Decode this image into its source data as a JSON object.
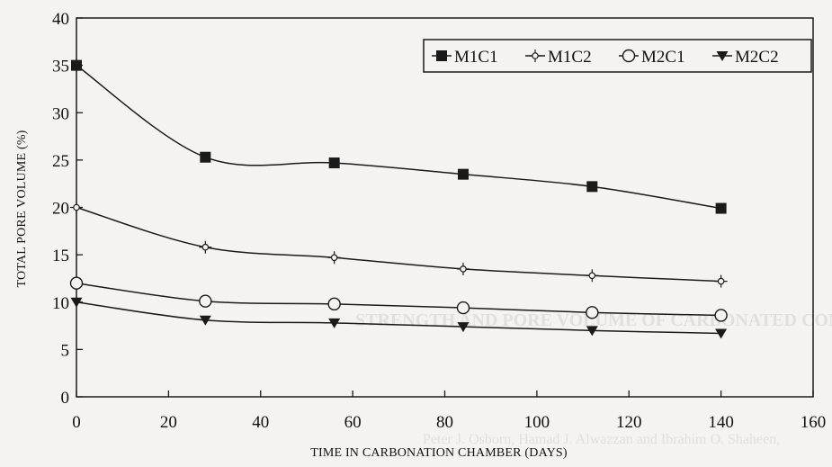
{
  "chart_data": {
    "type": "line",
    "xlabel": "TIME IN CARBONATION CHAMBER (DAYS)",
    "ylabel": "TOTAL PORE VOLUME (%)",
    "xlim": [
      0,
      160
    ],
    "ylim": [
      0,
      40
    ],
    "x_ticks": [
      0,
      20,
      40,
      60,
      80,
      100,
      120,
      140,
      160
    ],
    "y_ticks": [
      0,
      5,
      10,
      15,
      20,
      25,
      30,
      35,
      40
    ],
    "x_tick_labels": [
      "0",
      "20",
      "40",
      "60",
      "80",
      "100",
      "120",
      "140",
      "160"
    ],
    "y_tick_labels": [
      "0",
      "5",
      "10",
      "15",
      "20",
      "25",
      "30",
      "35",
      "40"
    ],
    "grid": false,
    "legend_position": "top-right",
    "x": [
      0,
      28,
      56,
      84,
      112,
      140
    ],
    "series": [
      {
        "name": "M1C1",
        "marker": "filled-square",
        "values": [
          35.0,
          25.3,
          24.7,
          23.5,
          22.2,
          19.9
        ]
      },
      {
        "name": "M1C2",
        "marker": "open-star",
        "values": [
          20.0,
          15.8,
          14.7,
          13.5,
          12.8,
          12.2
        ]
      },
      {
        "name": "M2C1",
        "marker": "open-circle",
        "values": [
          12.0,
          10.1,
          9.8,
          9.4,
          8.9,
          8.6
        ]
      },
      {
        "name": "M2C2",
        "marker": "filled-triangle-down",
        "values": [
          10.0,
          8.1,
          7.8,
          7.4,
          7.0,
          6.7
        ]
      }
    ],
    "colors": {
      "line": "#1a1a1a",
      "background": "#f4f3f1"
    }
  },
  "bleed_through": {
    "heading": "STRENGTH AND PORE VOLUME OF CARBONATED CONCR",
    "authors": "Peter J. Osborn, Hamad J. Alwazzan and Ibrahim O. Shaheen,"
  }
}
